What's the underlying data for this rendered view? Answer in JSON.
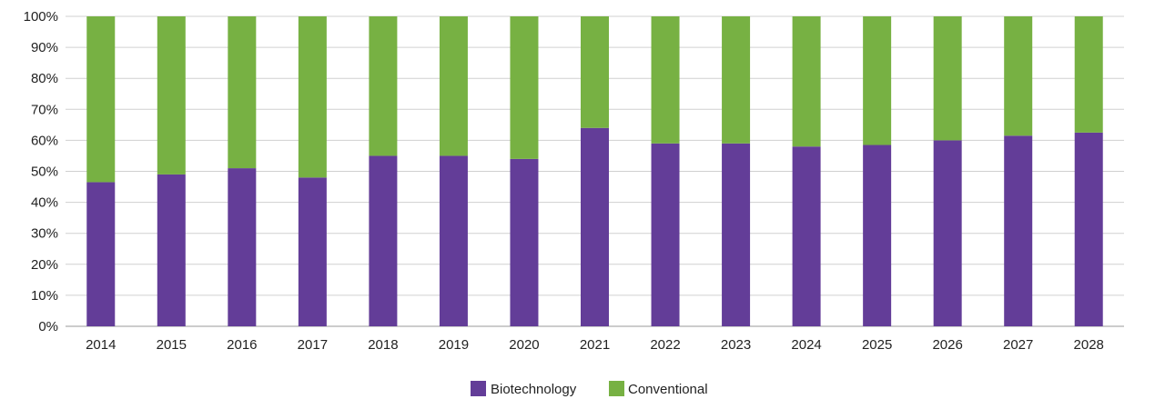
{
  "chart_data": {
    "type": "bar",
    "stacked": true,
    "categories": [
      "2014",
      "2015",
      "2016",
      "2017",
      "2018",
      "2019",
      "2020",
      "2021",
      "2022",
      "2023",
      "2024",
      "2025",
      "2026",
      "2027",
      "2028"
    ],
    "series": [
      {
        "name": "Biotechnology",
        "color": "#633d98",
        "values": [
          46.5,
          49,
          51,
          48,
          55,
          55,
          54,
          64,
          59,
          59,
          58,
          58.5,
          60,
          61.5,
          62.5
        ]
      },
      {
        "name": "Conventional",
        "color": "#77b143",
        "values": [
          53.5,
          51,
          49,
          52,
          45,
          45,
          46,
          36,
          41,
          41,
          42,
          41.5,
          40,
          38.5,
          37.5
        ]
      }
    ],
    "y_ticks": [
      "0%",
      "10%",
      "20%",
      "30%",
      "40%",
      "50%",
      "60%",
      "70%",
      "80%",
      "90%",
      "100%"
    ],
    "ylim": [
      0,
      100
    ],
    "y_unit": "%",
    "grid": true,
    "legend_position": "bottom"
  }
}
